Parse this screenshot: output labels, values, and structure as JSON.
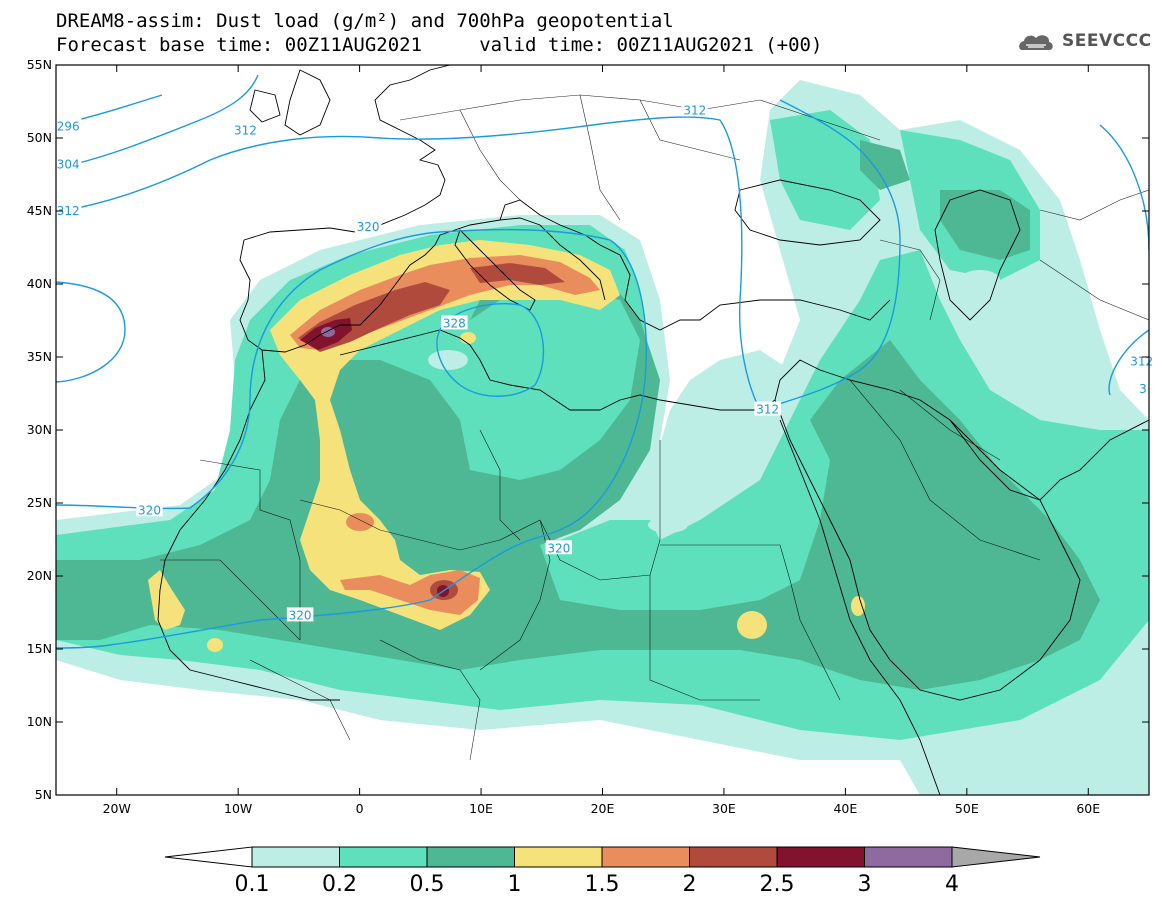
{
  "title": {
    "line1": "DREAM8-assim: Dust load (g/m²) and 700hPa geopotential",
    "line2": "Forecast base time: 00Z11AUG2021     valid time: 00Z11AUG2021 (+00)"
  },
  "logo": {
    "text": "SEEVCCC",
    "icon": "cloud-logo-icon"
  },
  "map": {
    "lon_range": [
      -25,
      65
    ],
    "lat_range": [
      5,
      55
    ],
    "lat_labels": [
      {
        "lat": 55,
        "label": "55N"
      },
      {
        "lat": 50,
        "label": "50N"
      },
      {
        "lat": 45,
        "label": "45N"
      },
      {
        "lat": 40,
        "label": "40N"
      },
      {
        "lat": 35,
        "label": "35N"
      },
      {
        "lat": 30,
        "label": "30N"
      },
      {
        "lat": 25,
        "label": "25N"
      },
      {
        "lat": 20,
        "label": "20N"
      },
      {
        "lat": 15,
        "label": "15N"
      },
      {
        "lat": 10,
        "label": "10N"
      },
      {
        "lat": 5,
        "label": "5N"
      }
    ],
    "lon_labels": [
      {
        "lon": -20,
        "label": "20W"
      },
      {
        "lon": -10,
        "label": "10W"
      },
      {
        "lon": 0,
        "label": "0"
      },
      {
        "lon": 10,
        "label": "10E"
      },
      {
        "lon": 20,
        "label": "20E"
      },
      {
        "lon": 30,
        "label": "30E"
      },
      {
        "lon": 40,
        "label": "40E"
      },
      {
        "lon": 50,
        "label": "50E"
      },
      {
        "lon": 60,
        "label": "60E"
      }
    ],
    "contour_labels": [
      {
        "text": "296",
        "lon": -24,
        "lat": 50.8
      },
      {
        "text": "304",
        "lon": -24,
        "lat": 48.2
      },
      {
        "text": "312",
        "lon": -24,
        "lat": 45.0
      },
      {
        "text": "312",
        "lon": -9.4,
        "lat": 50.5
      },
      {
        "text": "312",
        "lon": 27.6,
        "lat": 51.9
      },
      {
        "text": "320",
        "lon": 0.7,
        "lat": 43.9
      },
      {
        "text": "328",
        "lon": 7.8,
        "lat": 37.3
      },
      {
        "text": "312",
        "lon": 33.6,
        "lat": 31.4
      },
      {
        "text": "320",
        "lon": -17.3,
        "lat": 24.5
      },
      {
        "text": "320",
        "lon": 16.4,
        "lat": 21.9
      },
      {
        "text": "320",
        "lon": -4.9,
        "lat": 17.3
      },
      {
        "text": "312",
        "lon": 64.4,
        "lat": 34.7
      },
      {
        "text": "3",
        "lon": 64.5,
        "lat": 32.8
      }
    ]
  },
  "colorbar": {
    "colors": [
      "#ffffff",
      "#bdeee6",
      "#5ee0bc",
      "#4db893",
      "#f5e27a",
      "#e98d5d",
      "#b04a3d",
      "#82122e",
      "#8e6aa0",
      "#a8a8a8"
    ],
    "labels": [
      "0.1",
      "0.2",
      "0.5",
      "1",
      "1.5",
      "2",
      "2.5",
      "3",
      "4"
    ]
  }
}
